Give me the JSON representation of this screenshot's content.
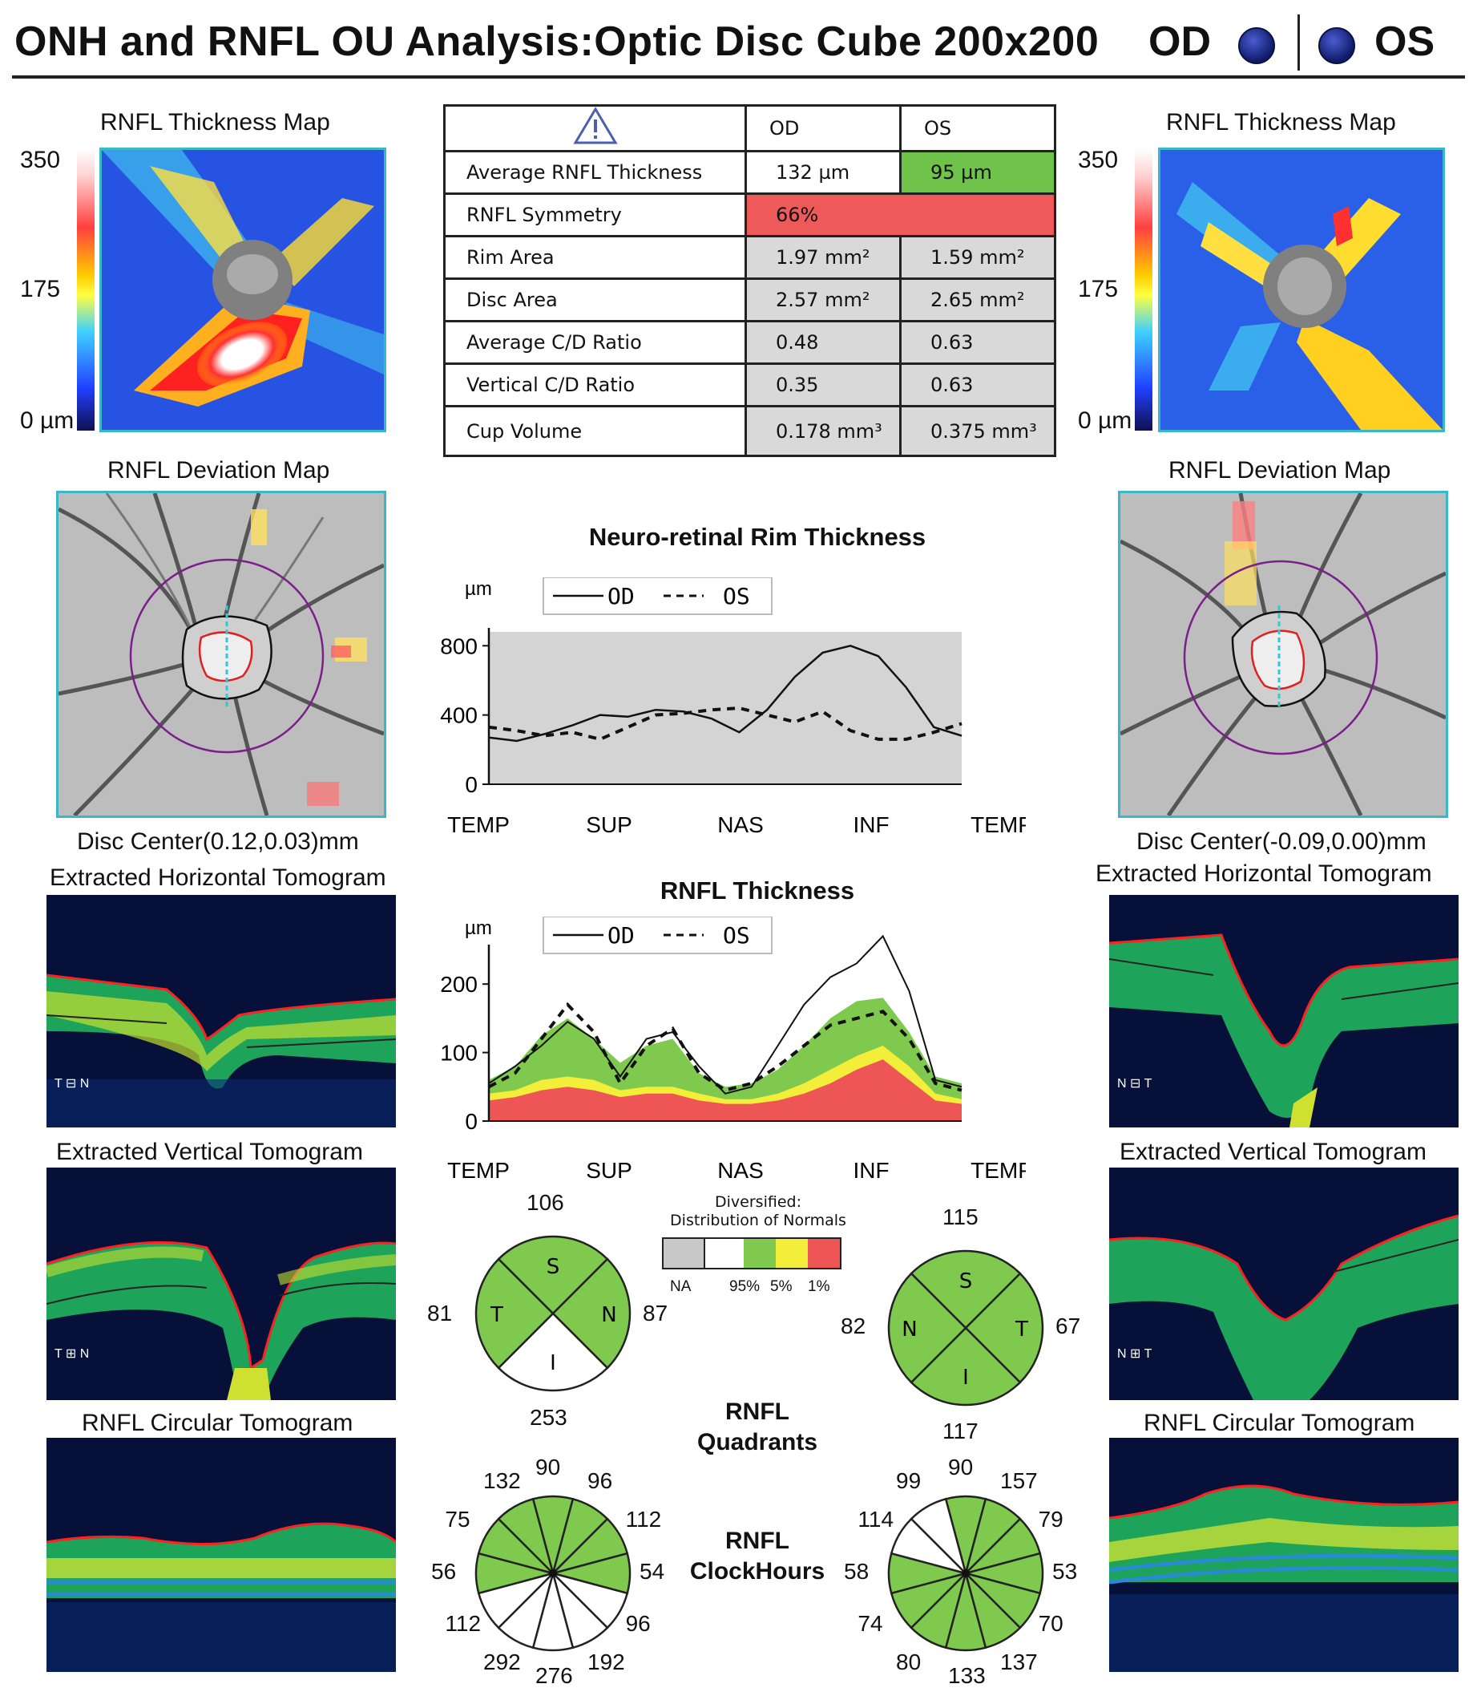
{
  "header": {
    "title": "ONH and RNFL OU Analysis:Optic Disc Cube 200x200",
    "od": "OD",
    "os": "OS"
  },
  "colors": {
    "frame": "#3ab8c8",
    "normal_green": "#7fca4e",
    "borderline_yellow": "#f2ee3a",
    "abnormal_red": "#ee5555",
    "na_gray": "#c8c8c8"
  },
  "thickness_scale": {
    "max": "350",
    "mid": "175",
    "min": "0 µm"
  },
  "panels": {
    "od": {
      "thickness_map": "RNFL Thickness Map",
      "deviation_map": "RNFL Deviation Map",
      "disc_center": "Disc Center(0.12,0.03)mm",
      "horizontal": "Extracted Horizontal Tomogram",
      "vertical": "Extracted Vertical Tomogram",
      "circular": "RNFL Circular Tomogram",
      "h_orient": "T ⊟ N",
      "v_orient": "T ⊞ N"
    },
    "os": {
      "thickness_map": "RNFL Thickness Map",
      "deviation_map": "RNFL Deviation Map",
      "disc_center": "Disc Center(-0.09,0.00)mm",
      "horizontal": "Extracted Horizontal Tomogram",
      "vertical": "Extracted Vertical Tomogram",
      "circular": "RNFL Circular Tomogram",
      "h_orient": "N ⊟ T",
      "v_orient": "N ⊞ T"
    }
  },
  "table": {
    "col_od": "OD",
    "col_os": "OS",
    "rows": [
      {
        "label": "Average RNFL Thickness",
        "od": "132 µm",
        "os": "95 µm"
      },
      {
        "label": "RNFL Symmetry",
        "both": "66%"
      },
      {
        "label": "Rim Area",
        "od": "1.97 mm²",
        "os": "1.59 mm²"
      },
      {
        "label": "Disc Area",
        "od": "2.57 mm²",
        "os": "2.65 mm²"
      },
      {
        "label": "Average C/D Ratio",
        "od": "0.48",
        "os": "0.63"
      },
      {
        "label": "Vertical C/D Ratio",
        "od": "0.35",
        "os": "0.63"
      },
      {
        "label": "Cup Volume",
        "od": "0.178 mm³",
        "os": "0.375 mm³"
      }
    ]
  },
  "chart_data": [
    {
      "type": "line",
      "title": "Neuro-retinal Rim Thickness",
      "ylabel": "µm",
      "yticks": [
        "800",
        "400",
        "0"
      ],
      "ylim": [
        0,
        880
      ],
      "xticks": [
        "TEMP",
        "SUP",
        "NAS",
        "INF",
        "TEMP"
      ],
      "legend": "top-left",
      "series": [
        {
          "name": "OD",
          "style": "solid",
          "values": [
            270,
            250,
            290,
            340,
            400,
            390,
            430,
            420,
            380,
            300,
            430,
            620,
            760,
            800,
            740,
            560,
            330,
            280
          ]
        },
        {
          "name": "OS",
          "style": "dashed",
          "values": [
            330,
            310,
            280,
            300,
            260,
            330,
            400,
            410,
            430,
            440,
            400,
            360,
            420,
            310,
            260,
            260,
            300,
            350
          ]
        }
      ]
    },
    {
      "type": "area",
      "title": "RNFL Thickness",
      "ylabel": "µm",
      "yticks": [
        "200",
        "100",
        "0"
      ],
      "ylim": [
        0,
        240
      ],
      "xticks": [
        "TEMP",
        "SUP",
        "NAS",
        "INF",
        "TEMP"
      ],
      "legend": "top-left",
      "normative": {
        "red": [
          30,
          35,
          45,
          50,
          45,
          35,
          40,
          40,
          30,
          25,
          25,
          30,
          40,
          55,
          75,
          90,
          60,
          30,
          25
        ],
        "yellow": [
          40,
          45,
          60,
          65,
          60,
          45,
          50,
          50,
          40,
          32,
          32,
          40,
          55,
          75,
          95,
          110,
          80,
          40,
          32
        ],
        "green": [
          60,
          80,
          125,
          150,
          120,
          85,
          110,
          120,
          70,
          50,
          55,
          75,
          110,
          150,
          175,
          180,
          130,
          65,
          55
        ]
      },
      "series": [
        {
          "name": "OD",
          "style": "solid",
          "values": [
            55,
            80,
            110,
            145,
            120,
            65,
            120,
            130,
            80,
            40,
            50,
            110,
            170,
            210,
            230,
            270,
            190,
            60,
            50
          ]
        },
        {
          "name": "OS",
          "style": "dashed",
          "values": [
            50,
            70,
            120,
            170,
            130,
            55,
            110,
            135,
            70,
            45,
            55,
            80,
            110,
            140,
            150,
            160,
            120,
            55,
            45
          ]
        }
      ]
    }
  ],
  "legend_norms": {
    "title1": "Diversified:",
    "title2": "Distribution of Normals",
    "na": "NA",
    "p95": "95%",
    "p5": "5%",
    "p1": "1%"
  },
  "quadrants": {
    "title1": "RNFL",
    "title2": "Quadrants",
    "od": {
      "s": "106",
      "t": "81",
      "n": "87",
      "i": "253",
      "fills": {
        "s": "green",
        "t": "green",
        "n": "green",
        "i": "white"
      }
    },
    "os": {
      "s": "115",
      "n": "82",
      "t": "67",
      "i": "117",
      "fills": {
        "s": "green",
        "t": "green",
        "n": "green",
        "i": "green"
      }
    }
  },
  "clockhours": {
    "title1": "RNFL",
    "title2": "ClockHours",
    "od": {
      "values": [
        "90",
        "96",
        "112",
        "54",
        "96",
        "192",
        "276",
        "292",
        "112",
        "56",
        "75",
        "132"
      ],
      "fills": [
        "green",
        "green",
        "green",
        "green",
        "white",
        "white",
        "white",
        "white",
        "white",
        "green",
        "green",
        "green"
      ]
    },
    "os": {
      "values": [
        "90",
        "157",
        "79",
        "53",
        "70",
        "137",
        "133",
        "80",
        "74",
        "58",
        "114",
        "99"
      ],
      "fills": [
        "green",
        "green",
        "green",
        "green",
        "green",
        "green",
        "green",
        "green",
        "green",
        "green",
        "white",
        "white"
      ]
    }
  }
}
